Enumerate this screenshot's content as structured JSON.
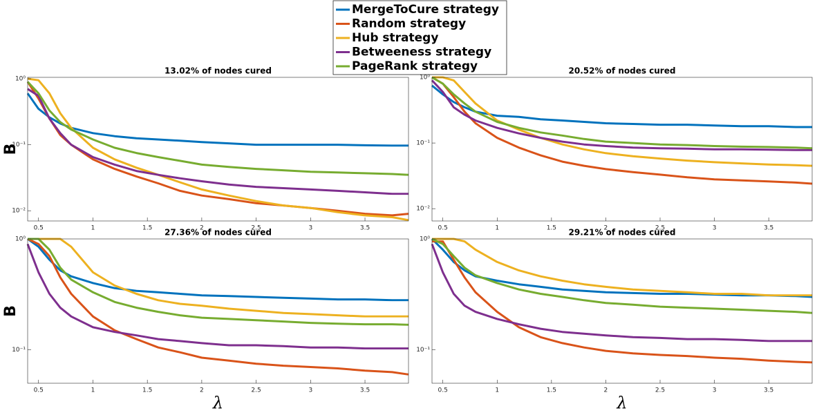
{
  "chart_data": [
    {
      "type": "line",
      "title": "13.02% of nodes cured",
      "ylabel": "B",
      "yscale": "log",
      "legend": "upper center",
      "x": [
        0.4,
        0.5,
        0.6,
        0.7,
        0.8,
        1.0,
        1.2,
        1.4,
        1.6,
        1.8,
        2.0,
        2.25,
        2.5,
        2.75,
        3.0,
        3.25,
        3.5,
        3.75,
        3.9
      ],
      "xlim": [
        0.4,
        3.9
      ],
      "xticks": [
        0.5,
        1,
        1.5,
        2,
        2.5,
        3,
        3.5
      ],
      "ylim": [
        0.007,
        1.05
      ],
      "yticks": [
        {
          "value": 1,
          "label": "10⁰"
        },
        {
          "value": 0.1,
          "label": "10⁻¹"
        },
        {
          "value": 0.01,
          "label": "10⁻²"
        }
      ],
      "series": [
        {
          "name": "MergeToCure strategy",
          "color": "#0072bd",
          "values": [
            0.6,
            0.35,
            0.26,
            0.21,
            0.18,
            0.15,
            0.135,
            0.125,
            0.12,
            0.115,
            0.11,
            0.105,
            0.1,
            0.1,
            0.1,
            0.1,
            0.098,
            0.097,
            0.097
          ]
        },
        {
          "name": "Random strategy",
          "color": "#d95319",
          "values": [
            0.9,
            0.5,
            0.25,
            0.14,
            0.1,
            0.06,
            0.043,
            0.033,
            0.026,
            0.02,
            0.017,
            0.015,
            0.013,
            0.012,
            0.011,
            0.01,
            0.009,
            0.0085,
            0.009
          ]
        },
        {
          "name": "Hub strategy",
          "color": "#edb120",
          "values": [
            1,
            0.95,
            0.6,
            0.3,
            0.18,
            0.09,
            0.06,
            0.045,
            0.035,
            0.027,
            0.021,
            0.017,
            0.014,
            0.012,
            0.011,
            0.0095,
            0.0085,
            0.008,
            0.0072
          ]
        },
        {
          "name": "Betweeness strategy",
          "color": "#7e2f8e",
          "values": [
            0.7,
            0.55,
            0.25,
            0.15,
            0.1,
            0.065,
            0.05,
            0.04,
            0.035,
            0.031,
            0.028,
            0.025,
            0.023,
            0.022,
            0.021,
            0.02,
            0.019,
            0.018,
            0.018
          ]
        },
        {
          "name": "PageRank strategy",
          "color": "#77ac30",
          "values": [
            0.9,
            0.6,
            0.33,
            0.22,
            0.17,
            0.12,
            0.09,
            0.075,
            0.065,
            0.057,
            0.05,
            0.046,
            0.043,
            0.041,
            0.039,
            0.038,
            0.037,
            0.036,
            0.035
          ]
        }
      ]
    },
    {
      "type": "line",
      "title": "20.52% of nodes cured",
      "yscale": "log",
      "x": [
        0.4,
        0.5,
        0.6,
        0.7,
        0.8,
        1.0,
        1.2,
        1.4,
        1.6,
        1.8,
        2.0,
        2.25,
        2.5,
        2.75,
        3.0,
        3.25,
        3.5,
        3.75,
        3.9
      ],
      "xlim": [
        0.4,
        3.9
      ],
      "xticks": [
        0.5,
        1,
        1.5,
        2,
        2.5,
        3,
        3.5
      ],
      "ylim": [
        0.0065,
        1
      ],
      "yticks": [
        {
          "value": 1,
          "label": "10⁰"
        },
        {
          "value": 0.1,
          "label": "10⁻¹"
        },
        {
          "value": 0.01,
          "label": "10⁻²"
        }
      ],
      "series": [
        {
          "color": "#0072bd",
          "values": [
            0.75,
            0.55,
            0.42,
            0.35,
            0.3,
            0.26,
            0.25,
            0.23,
            0.22,
            0.21,
            0.2,
            0.195,
            0.19,
            0.19,
            0.185,
            0.18,
            0.18,
            0.175,
            0.175
          ]
        },
        {
          "color": "#d95319",
          "values": [
            1,
            0.8,
            0.5,
            0.3,
            0.2,
            0.12,
            0.085,
            0.065,
            0.052,
            0.045,
            0.04,
            0.036,
            0.033,
            0.03,
            0.028,
            0.027,
            0.026,
            0.025,
            0.024
          ]
        },
        {
          "color": "#edb120",
          "values": [
            1,
            1,
            0.9,
            0.6,
            0.4,
            0.22,
            0.16,
            0.12,
            0.095,
            0.08,
            0.07,
            0.063,
            0.058,
            0.054,
            0.051,
            0.049,
            0.047,
            0.046,
            0.045
          ]
        },
        {
          "color": "#7e2f8e",
          "values": [
            0.9,
            0.6,
            0.35,
            0.27,
            0.22,
            0.17,
            0.14,
            0.12,
            0.105,
            0.095,
            0.09,
            0.085,
            0.083,
            0.082,
            0.08,
            0.08,
            0.079,
            0.078,
            0.078
          ]
        },
        {
          "color": "#77ac30",
          "values": [
            1,
            0.8,
            0.55,
            0.4,
            0.3,
            0.21,
            0.17,
            0.145,
            0.13,
            0.115,
            0.105,
            0.1,
            0.095,
            0.093,
            0.09,
            0.088,
            0.087,
            0.085,
            0.083
          ]
        }
      ]
    },
    {
      "type": "line",
      "title": "27.36% of nodes cured",
      "ylabel": "B",
      "xlabel": "λ",
      "yscale": "log",
      "x": [
        0.4,
        0.5,
        0.6,
        0.7,
        0.8,
        1.0,
        1.2,
        1.4,
        1.6,
        1.8,
        2.0,
        2.25,
        2.5,
        2.75,
        3.0,
        3.25,
        3.5,
        3.75,
        3.9
      ],
      "xlim": [
        0.4,
        3.9
      ],
      "xticks": [
        0.5,
        1,
        1.5,
        2,
        2.5,
        3,
        3.5
      ],
      "ylim": [
        0.05,
        1
      ],
      "yticks": [
        {
          "value": 1,
          "label": "10⁰"
        },
        {
          "value": 0.1,
          "label": "10⁻¹"
        }
      ],
      "series": [
        {
          "color": "#0072bd",
          "values": [
            1,
            0.85,
            0.65,
            0.52,
            0.46,
            0.4,
            0.36,
            0.34,
            0.33,
            0.32,
            0.31,
            0.305,
            0.3,
            0.295,
            0.29,
            0.285,
            0.285,
            0.28,
            0.28
          ]
        },
        {
          "color": "#d95319",
          "values": [
            1,
            0.9,
            0.7,
            0.45,
            0.32,
            0.2,
            0.15,
            0.125,
            0.105,
            0.095,
            0.085,
            0.08,
            0.075,
            0.072,
            0.07,
            0.068,
            0.065,
            0.063,
            0.06
          ]
        },
        {
          "color": "#edb120",
          "values": [
            1,
            1,
            1,
            1,
            0.85,
            0.5,
            0.38,
            0.32,
            0.28,
            0.26,
            0.25,
            0.235,
            0.225,
            0.215,
            0.21,
            0.205,
            0.2,
            0.2,
            0.2
          ]
        },
        {
          "color": "#7e2f8e",
          "values": [
            0.9,
            0.5,
            0.32,
            0.24,
            0.2,
            0.16,
            0.145,
            0.135,
            0.125,
            0.12,
            0.115,
            0.11,
            0.11,
            0.108,
            0.105,
            0.105,
            0.103,
            0.103,
            0.103
          ]
        },
        {
          "color": "#77ac30",
          "values": [
            1,
            1,
            0.8,
            0.55,
            0.43,
            0.33,
            0.27,
            0.24,
            0.22,
            0.205,
            0.195,
            0.19,
            0.185,
            0.18,
            0.175,
            0.172,
            0.17,
            0.17,
            0.168
          ]
        }
      ]
    },
    {
      "type": "line",
      "title": "29.21% of nodes cured",
      "xlabel": "λ",
      "yscale": "log",
      "x": [
        0.4,
        0.5,
        0.6,
        0.7,
        0.8,
        1.0,
        1.2,
        1.4,
        1.6,
        1.8,
        2.0,
        2.25,
        2.5,
        2.75,
        3.0,
        3.25,
        3.5,
        3.75,
        3.9
      ],
      "xlim": [
        0.4,
        3.9
      ],
      "xticks": [
        0.5,
        1,
        1.5,
        2,
        2.5,
        3,
        3.5
      ],
      "ylim": [
        0.05,
        1
      ],
      "yticks": [
        {
          "value": 1,
          "label": "10⁰"
        },
        {
          "value": 0.1,
          "label": "10⁻¹"
        }
      ],
      "series": [
        {
          "color": "#0072bd",
          "values": [
            1,
            0.8,
            0.62,
            0.52,
            0.46,
            0.42,
            0.39,
            0.37,
            0.35,
            0.34,
            0.33,
            0.325,
            0.32,
            0.32,
            0.315,
            0.31,
            0.31,
            0.305,
            0.3
          ]
        },
        {
          "color": "#d95319",
          "values": [
            0.95,
            0.95,
            0.65,
            0.45,
            0.33,
            0.22,
            0.16,
            0.13,
            0.115,
            0.105,
            0.098,
            0.093,
            0.09,
            0.088,
            0.085,
            0.083,
            0.08,
            0.078,
            0.077
          ]
        },
        {
          "color": "#edb120",
          "values": [
            1,
            1,
            1,
            0.95,
            0.8,
            0.62,
            0.52,
            0.46,
            0.42,
            0.39,
            0.37,
            0.35,
            0.34,
            0.33,
            0.32,
            0.32,
            0.31,
            0.31,
            0.31
          ]
        },
        {
          "color": "#7e2f8e",
          "values": [
            0.9,
            0.5,
            0.32,
            0.25,
            0.22,
            0.19,
            0.17,
            0.155,
            0.145,
            0.14,
            0.135,
            0.13,
            0.128,
            0.125,
            0.125,
            0.123,
            0.12,
            0.12,
            0.12
          ]
        },
        {
          "color": "#77ac30",
          "values": [
            1,
            0.9,
            0.7,
            0.55,
            0.47,
            0.4,
            0.35,
            0.32,
            0.3,
            0.28,
            0.265,
            0.255,
            0.245,
            0.24,
            0.235,
            0.23,
            0.225,
            0.22,
            0.215
          ]
        }
      ]
    }
  ]
}
